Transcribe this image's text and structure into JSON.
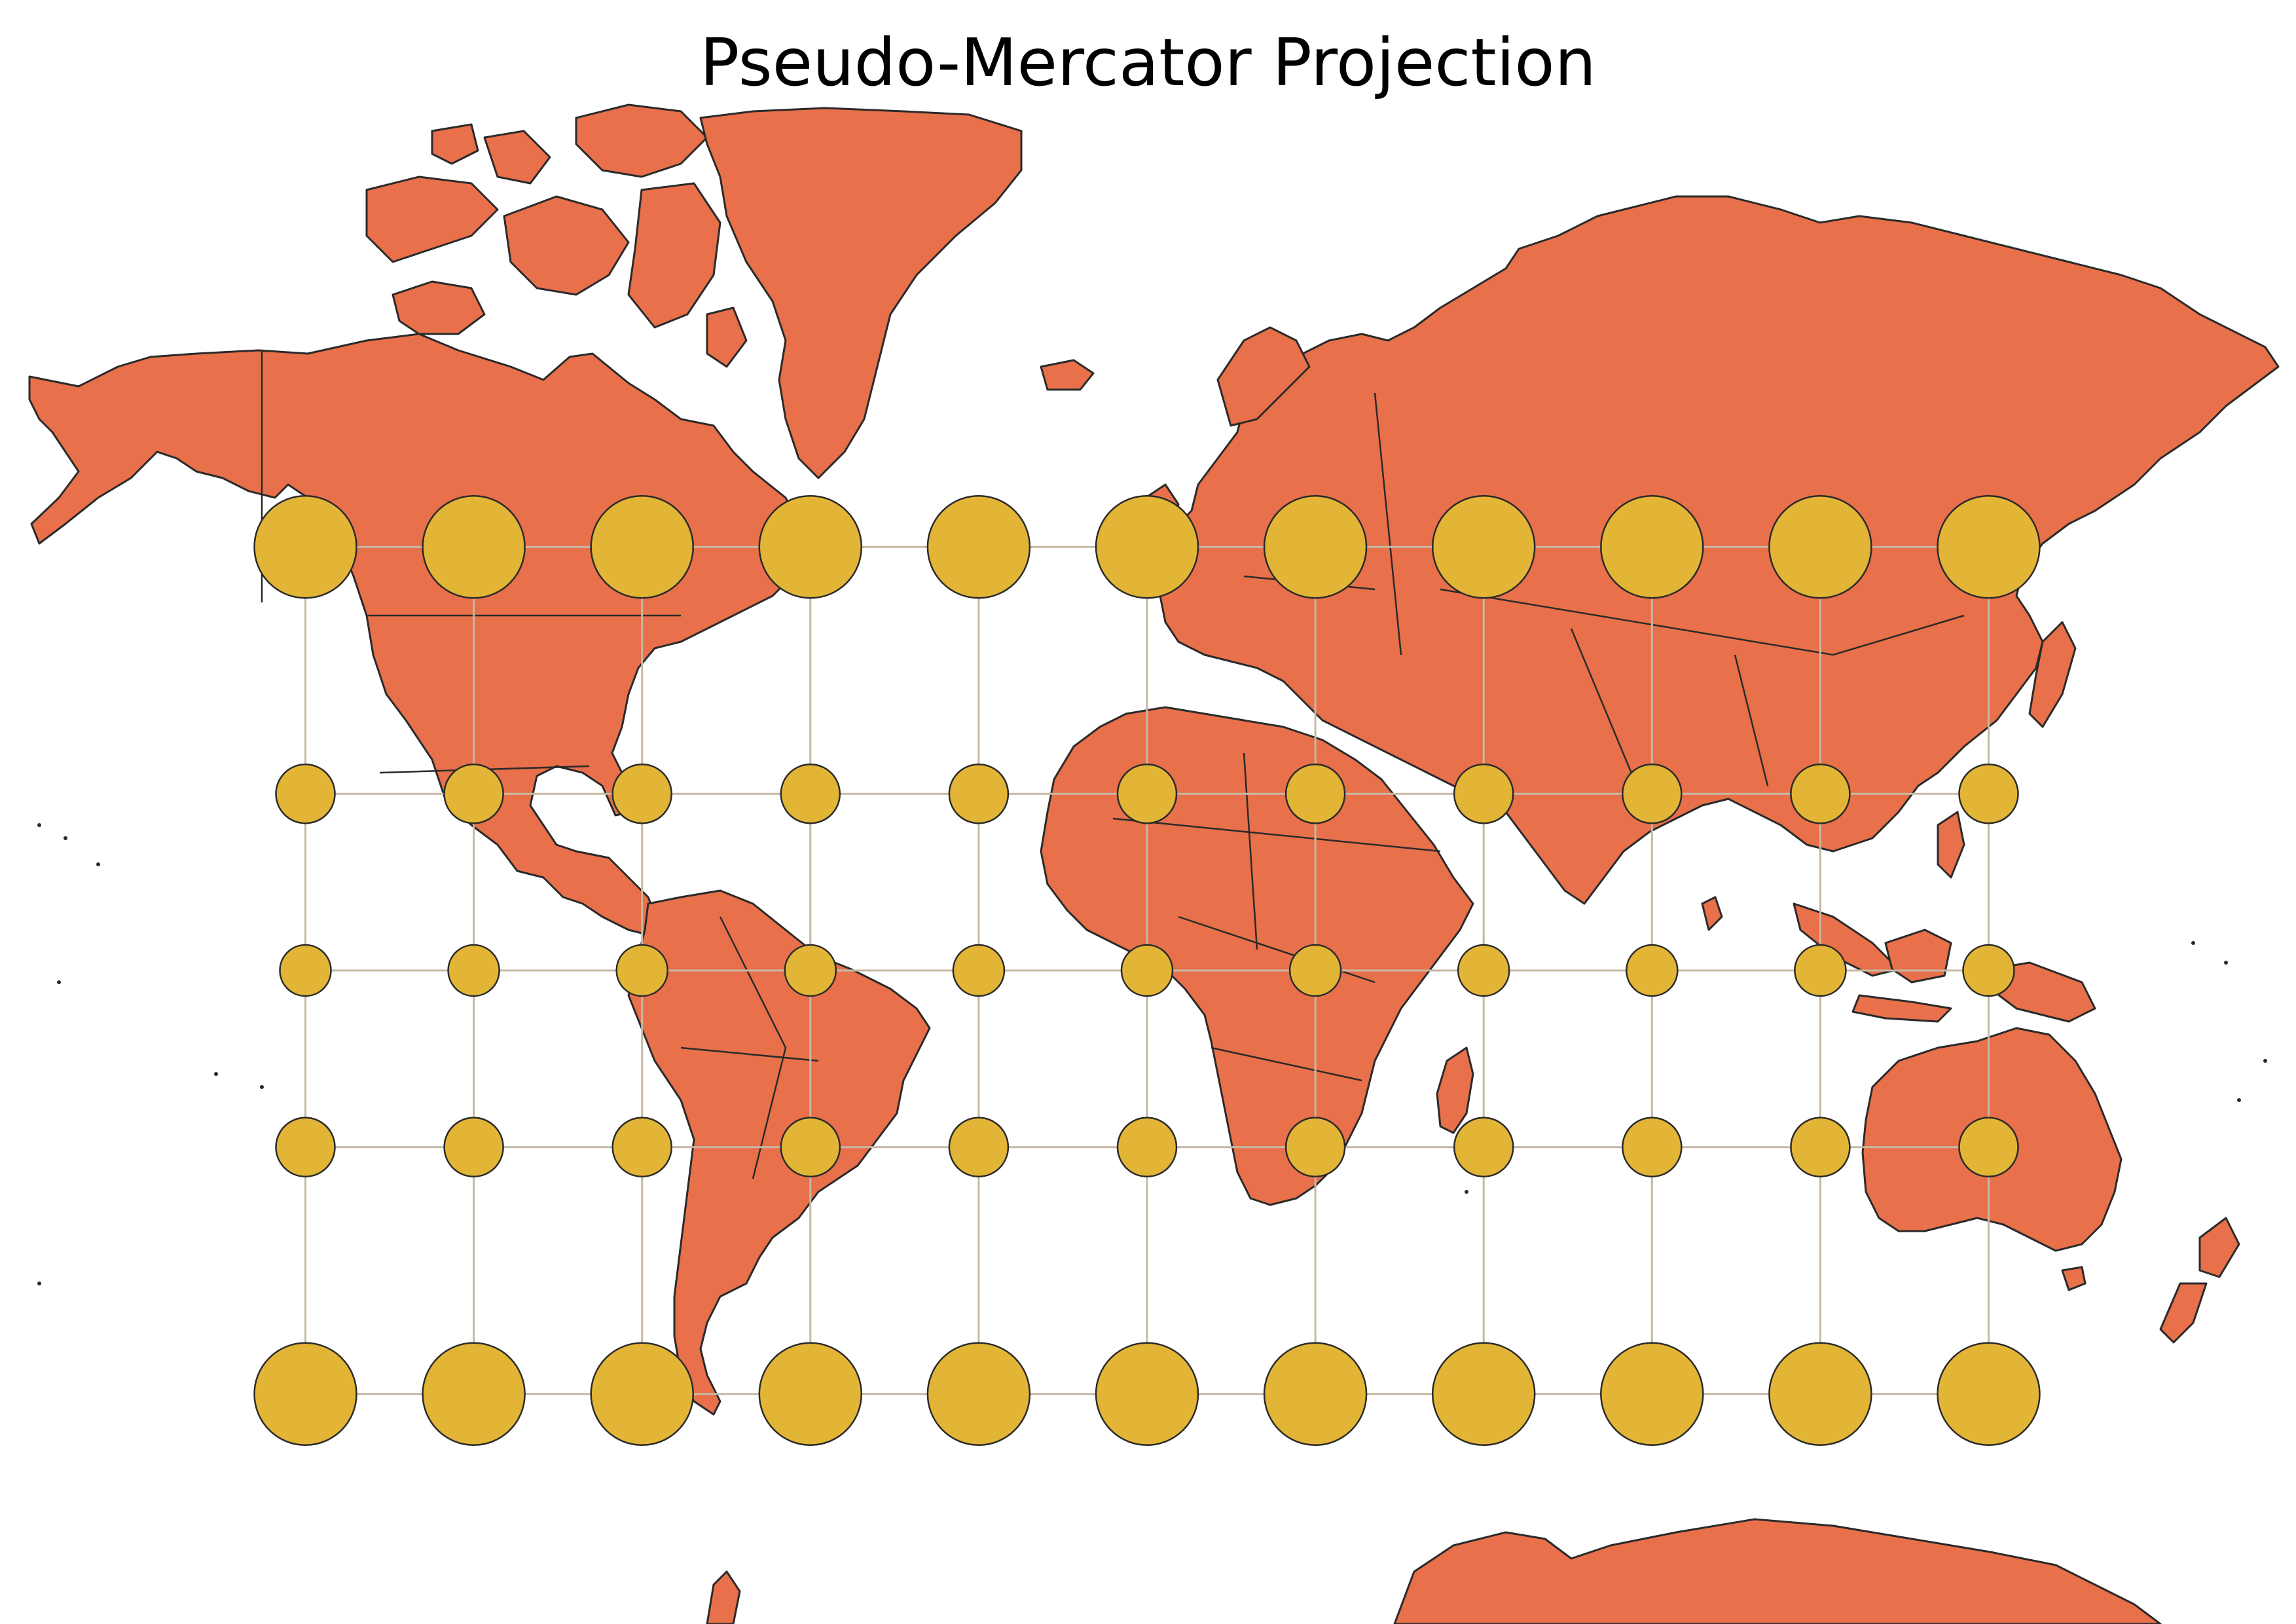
{
  "title": "Pseudo-Mercator Projection",
  "colors": {
    "land": "#e8704a",
    "indicatrix": "#e3b536",
    "graticule": "#c6b9a4",
    "outline": "#2a2a2a",
    "background": "#ffffff"
  },
  "map": {
    "projection": "Pseudo-Mercator",
    "graticule": {
      "longitudes": [
        -150,
        -120,
        -90,
        -60,
        -30,
        0,
        30,
        60,
        90,
        120,
        150
      ],
      "latitudes": [
        60,
        30,
        0,
        -30,
        -60
      ]
    },
    "indicatrix": {
      "radius_km": 500
    }
  }
}
